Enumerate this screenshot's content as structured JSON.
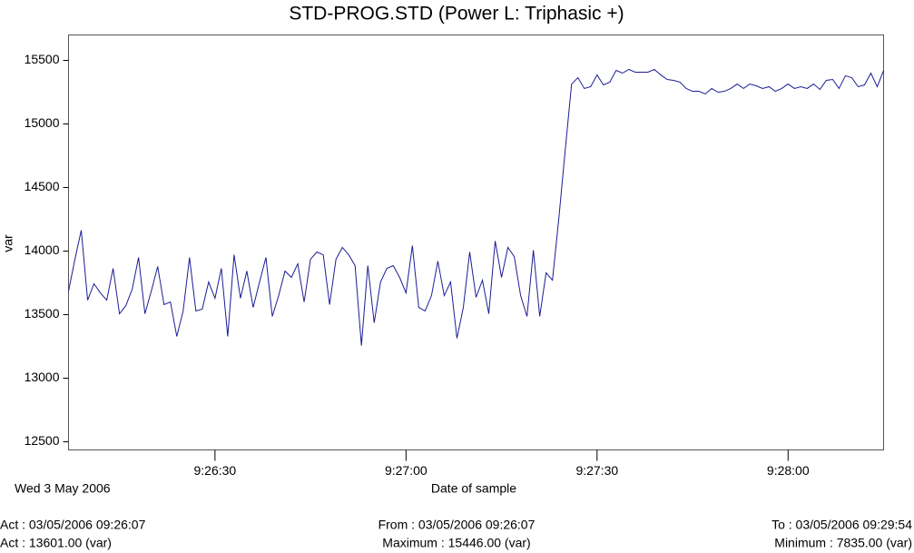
{
  "chart_data": {
    "type": "line",
    "title": "STD-PROG.STD (Power L: Triphasic +)",
    "y_label": "var",
    "x_label": "Date of sample",
    "date_label": "Wed 3 May 2006",
    "footer": {
      "left": [
        "Act : 03/05/2006 09:26:07",
        "Act : 13601.00 (var)"
      ],
      "center": [
        "From : 03/05/2006 09:26:07",
        "Maximum : 15446.00 (var)"
      ],
      "right": [
        "To : 03/05/2006 09:29:54",
        "Minimum : 7835.00 (var)"
      ]
    },
    "xlim": [
      "9:26:07",
      "9:28:15"
    ],
    "xticks": [
      "9:26:30",
      "9:27:00",
      "9:27:30",
      "9:28:00"
    ],
    "ylim": [
      12436,
      15700
    ],
    "yticks": [
      12500,
      13000,
      13500,
      14000,
      14500,
      15000,
      15500
    ],
    "grid": false,
    "x": [
      "9:26:07",
      "9:26:08",
      "9:26:09",
      "9:26:10",
      "9:26:11",
      "9:26:12",
      "9:26:13",
      "9:26:14",
      "9:26:15",
      "9:26:16",
      "9:26:17",
      "9:26:18",
      "9:26:19",
      "9:26:20",
      "9:26:21",
      "9:26:22",
      "9:26:23",
      "9:26:24",
      "9:26:25",
      "9:26:26",
      "9:26:27",
      "9:26:28",
      "9:26:29",
      "9:26:30",
      "9:26:31",
      "9:26:32",
      "9:26:33",
      "9:26:34",
      "9:26:35",
      "9:26:36",
      "9:26:37",
      "9:26:38",
      "9:26:39",
      "9:26:40",
      "9:26:41",
      "9:26:42",
      "9:26:43",
      "9:26:44",
      "9:26:45",
      "9:26:46",
      "9:26:47",
      "9:26:48",
      "9:26:49",
      "9:26:50",
      "9:26:51",
      "9:26:52",
      "9:26:53",
      "9:26:54",
      "9:26:55",
      "9:26:56",
      "9:26:57",
      "9:26:58",
      "9:26:59",
      "9:27:00",
      "9:27:01",
      "9:27:02",
      "9:27:03",
      "9:27:04",
      "9:27:05",
      "9:27:06",
      "9:27:07",
      "9:27:08",
      "9:27:09",
      "9:27:10",
      "9:27:11",
      "9:27:12",
      "9:27:13",
      "9:27:14",
      "9:27:15",
      "9:27:16",
      "9:27:17",
      "9:27:18",
      "9:27:19",
      "9:27:20",
      "9:27:21",
      "9:27:22",
      "9:27:23",
      "9:27:24",
      "9:27:25",
      "9:27:26",
      "9:27:27",
      "9:27:28",
      "9:27:29",
      "9:27:30",
      "9:27:31",
      "9:27:32",
      "9:27:33",
      "9:27:34",
      "9:27:35",
      "9:27:36",
      "9:27:37",
      "9:27:38",
      "9:27:39",
      "9:27:40",
      "9:27:41",
      "9:27:42",
      "9:27:43",
      "9:27:44",
      "9:27:45",
      "9:27:46",
      "9:27:47",
      "9:27:48",
      "9:27:49",
      "9:27:50",
      "9:27:51",
      "9:27:52",
      "9:27:53",
      "9:27:54",
      "9:27:55",
      "9:27:56",
      "9:27:57",
      "9:27:58",
      "9:27:59",
      "9:28:00",
      "9:28:01",
      "9:28:02",
      "9:28:03",
      "9:28:04",
      "9:28:05",
      "9:28:06",
      "9:28:07",
      "9:28:08",
      "9:28:09",
      "9:28:10",
      "9:28:11",
      "9:28:12",
      "9:28:13",
      "9:28:14",
      "9:28:15"
    ],
    "series": [
      {
        "name": "Power L: Triphasic +",
        "color": "#1c1c96",
        "values": [
          13686,
          13935,
          14164,
          13614,
          13743,
          13671,
          13614,
          13864,
          13507,
          13571,
          13700,
          13950,
          13507,
          13686,
          13879,
          13579,
          13600,
          13329,
          13529,
          13950,
          13529,
          13543,
          13757,
          13629,
          13864,
          13329,
          13971,
          13629,
          13843,
          13557,
          13757,
          13950,
          13486,
          13650,
          13843,
          13793,
          13900,
          13600,
          13936,
          13993,
          13971,
          13579,
          13936,
          14029,
          13971,
          13886,
          13257,
          13886,
          13436,
          13757,
          13864,
          13886,
          13793,
          13671,
          14043,
          13557,
          13529,
          13650,
          13921,
          13650,
          13757,
          13314,
          13557,
          13993,
          13636,
          13771,
          13507,
          14079,
          13793,
          14029,
          13957,
          13650,
          13486,
          14007,
          13486,
          13829,
          13771,
          14257,
          14793,
          15314,
          15364,
          15279,
          15293,
          15386,
          15307,
          15329,
          15421,
          15400,
          15429,
          15407,
          15407,
          15407,
          15429,
          15386,
          15350,
          15343,
          15329,
          15279,
          15257,
          15257,
          15236,
          15279,
          15250,
          15257,
          15279,
          15314,
          15279,
          15314,
          15300,
          15279,
          15293,
          15257,
          15279,
          15314,
          15279,
          15293,
          15279,
          15314,
          15271,
          15343,
          15350,
          15279,
          15379,
          15364,
          15293,
          15307,
          15400,
          15293,
          15421
        ]
      }
    ]
  }
}
